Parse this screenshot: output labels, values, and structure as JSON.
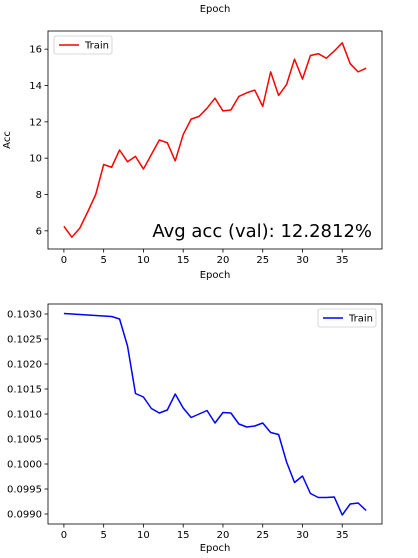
{
  "chart_data": [
    {
      "type": "line",
      "title": "Epoch",
      "xlabel": "Epoch",
      "ylabel": "Acc",
      "xlim": [
        -2,
        40
      ],
      "ylim": [
        5,
        17
      ],
      "xticks": [
        0,
        5,
        10,
        15,
        20,
        25,
        30,
        35
      ],
      "yticks": [
        6,
        8,
        10,
        12,
        14,
        16
      ],
      "legend": "top-left",
      "grid": false,
      "annotation": "Avg acc (val): 12.2812%",
      "series": [
        {
          "name": "Train",
          "color": "#ff0000",
          "x": [
            0,
            1,
            2,
            3,
            4,
            5,
            6,
            7,
            8,
            9,
            10,
            11,
            12,
            13,
            14,
            15,
            16,
            17,
            18,
            19,
            20,
            21,
            22,
            23,
            24,
            25,
            26,
            27,
            28,
            29,
            30,
            31,
            32,
            33,
            34,
            35,
            36,
            37,
            38
          ],
          "y": [
            6.25,
            5.65,
            6.15,
            7.05,
            8.0,
            9.65,
            9.5,
            10.45,
            9.8,
            10.1,
            9.4,
            10.2,
            11.0,
            10.85,
            9.85,
            11.3,
            12.15,
            12.3,
            12.75,
            13.3,
            12.6,
            12.65,
            13.4,
            13.6,
            13.75,
            12.85,
            14.75,
            13.45,
            14.05,
            15.45,
            14.35,
            15.65,
            15.75,
            15.5,
            15.9,
            16.35,
            15.2,
            14.75,
            14.95
          ]
        }
      ]
    },
    {
      "type": "line",
      "xlabel": "Epoch",
      "ylabel": "",
      "xlim": [
        -2,
        40
      ],
      "ylim": [
        0.0988,
        0.1032
      ],
      "xticks": [
        0,
        5,
        10,
        15,
        20,
        25,
        30,
        35
      ],
      "yticks": [
        "0.0990",
        "0.0995",
        "0.1000",
        "0.1005",
        "0.1010",
        "0.1015",
        "0.1020",
        "0.1025",
        "0.1030"
      ],
      "legend": "top-right",
      "grid": false,
      "series": [
        {
          "name": "Train",
          "color": "#0000ff",
          "x": [
            0,
            1,
            2,
            3,
            4,
            5,
            6,
            7,
            8,
            9,
            10,
            11,
            12,
            13,
            14,
            15,
            16,
            17,
            18,
            19,
            20,
            21,
            22,
            23,
            24,
            25,
            26,
            27,
            28,
            29,
            30,
            31,
            32,
            33,
            34,
            35,
            36,
            37,
            38
          ],
          "y": [
            0.10301,
            0.103,
            0.10299,
            0.10298,
            0.10297,
            0.10296,
            0.10295,
            0.1029,
            0.10236,
            0.10141,
            0.10134,
            0.10111,
            0.10102,
            0.10108,
            0.1014,
            0.10112,
            0.10093,
            0.101,
            0.10107,
            0.10082,
            0.10103,
            0.10102,
            0.1008,
            0.10074,
            0.10076,
            0.10082,
            0.10063,
            0.10059,
            0.10004,
            0.09963,
            0.09976,
            0.09941,
            0.09933,
            0.09933,
            0.09934,
            0.09898,
            0.0992,
            0.09922,
            0.09907
          ]
        }
      ]
    }
  ]
}
